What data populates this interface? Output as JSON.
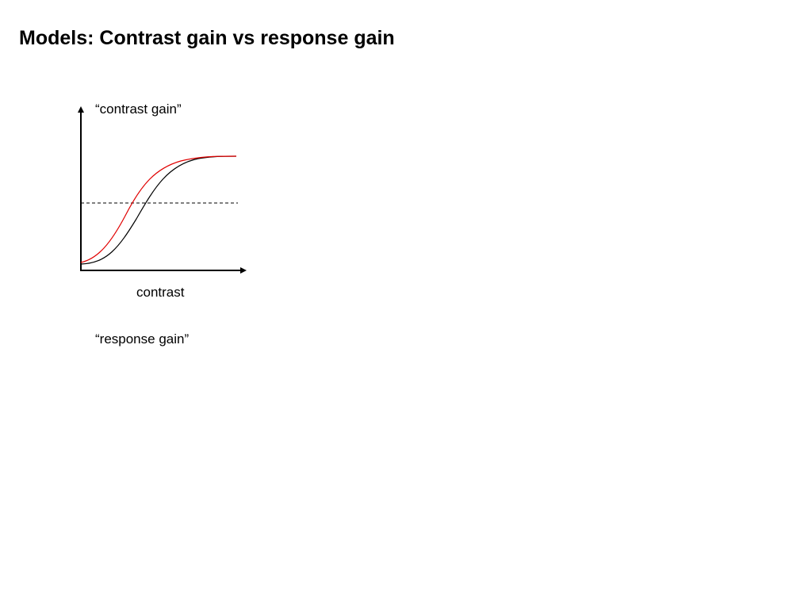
{
  "header": {
    "title": "Models: Contrast gain vs response gain"
  },
  "figure": {
    "label": "“contrast gain”",
    "x_axis_label": "contrast"
  },
  "caption": "“response gain”"
}
